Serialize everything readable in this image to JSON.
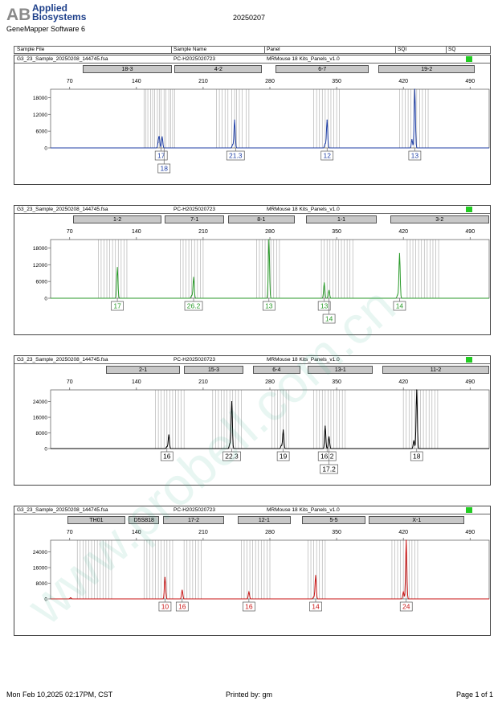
{
  "header": {
    "brand_line1": "Applied",
    "brand_line2": "Biosystems",
    "logo_letters": "AB",
    "software": "GeneMapper Software 6",
    "date": "20250207"
  },
  "columns": [
    "Sample File",
    "Sample Name",
    "Panel",
    "SQI",
    "SQ"
  ],
  "footer": {
    "printed_at": "Mon Feb 10,2025 02:17PM, CST",
    "printed_by": "Printed by: gm",
    "page": "Page 1 of 1"
  },
  "watermark": "www.probell.com.cn",
  "colors": {
    "quality_box": "#22cc22",
    "bin_lines": "#b4b4b4"
  },
  "chart_data": [
    {
      "type": "line",
      "sample_file": "G3_23_Sample_20250208_144745.fsa",
      "sample_name": "PC-H2025020723",
      "panel": "MRMouse 18 Kits_Panels_v1.0",
      "color": "#1f3fa6",
      "xlim": [
        50,
        510
      ],
      "x_ticks": [
        70,
        140,
        210,
        280,
        350,
        420,
        490
      ],
      "ylim": [
        0,
        21000
      ],
      "y_ticks": [
        0,
        6000,
        12000,
        18000
      ],
      "markers": [
        {
          "name": "18-3",
          "start": 84,
          "end": 177
        },
        {
          "name": "4-2",
          "start": 180,
          "end": 272
        },
        {
          "name": "6-7",
          "start": 286,
          "end": 384
        },
        {
          "name": "19-2",
          "start": 394,
          "end": 495
        }
      ],
      "bins": [
        [
          148,
          150,
          152,
          155,
          157,
          159,
          162,
          164,
          166,
          169,
          171,
          174,
          176,
          178,
          180
        ],
        [
          224,
          227,
          230,
          233,
          236,
          240,
          243,
          245,
          248,
          251,
          255,
          258
        ],
        [
          326,
          329,
          332,
          335,
          338,
          341,
          344,
          347,
          350,
          353
        ],
        [
          416,
          419,
          422,
          425,
          428,
          431,
          434,
          437,
          440,
          443,
          446
        ]
      ],
      "peaks": [
        {
          "x": 163,
          "height": 2000
        },
        {
          "x": 164,
          "height": 3500
        },
        {
          "x": 167,
          "height": 4000
        },
        {
          "x": 241,
          "height": 1200
        },
        {
          "x": 243,
          "height": 10000
        },
        {
          "x": 338,
          "height": 1500
        },
        {
          "x": 340,
          "height": 10000
        },
        {
          "x": 429,
          "height": 3000
        },
        {
          "x": 432,
          "height": 21000
        }
      ],
      "alleles": [
        {
          "label": "17",
          "x": 166,
          "row": 0
        },
        {
          "label": "18",
          "x": 169,
          "row": 1
        },
        {
          "label": "21.3",
          "x": 244,
          "row": 0
        },
        {
          "label": "12",
          "x": 340,
          "row": 0
        },
        {
          "label": "13",
          "x": 432,
          "row": 0
        }
      ]
    },
    {
      "type": "line",
      "sample_file": "G3_23_Sample_20250208_144745.fsa",
      "sample_name": "PC-H2025020723",
      "panel": "MRMouse 18 Kits_Panels_v1.0",
      "color": "#2a9a2a",
      "xlim": [
        50,
        510
      ],
      "x_ticks": [
        70,
        140,
        210,
        280,
        350,
        420,
        490
      ],
      "ylim": [
        0,
        21000
      ],
      "y_ticks": [
        0,
        6000,
        12000,
        18000
      ],
      "markers": [
        {
          "name": "1-2",
          "start": 74,
          "end": 166
        },
        {
          "name": "7-1",
          "start": 170,
          "end": 232
        },
        {
          "name": "8-1",
          "start": 236,
          "end": 306
        },
        {
          "name": "1-1",
          "start": 318,
          "end": 392
        },
        {
          "name": "3-2",
          "start": 406,
          "end": 510
        }
      ],
      "bins": [
        [
          100,
          103,
          106,
          109,
          112,
          115,
          118,
          121,
          124,
          127,
          130
        ],
        [
          186,
          189,
          192,
          195,
          198,
          201,
          204,
          207,
          210
        ],
        [
          266,
          269,
          272,
          275,
          278,
          281,
          284,
          287,
          290
        ],
        [
          334,
          337,
          340,
          343,
          346,
          349,
          352,
          355,
          358,
          361,
          364,
          367
        ],
        [
          424,
          427,
          430,
          433,
          436,
          439,
          442,
          445,
          448,
          451,
          454,
          457
        ]
      ],
      "peaks": [
        {
          "x": 120,
          "height": 11000
        },
        {
          "x": 198,
          "height": 1000
        },
        {
          "x": 200,
          "height": 7500
        },
        {
          "x": 279,
          "height": 21000
        },
        {
          "x": 337,
          "height": 5500
        },
        {
          "x": 342,
          "height": 2800
        },
        {
          "x": 414,
          "height": 1200
        },
        {
          "x": 416,
          "height": 16000
        }
      ],
      "alleles": [
        {
          "label": "17",
          "x": 120,
          "row": 0
        },
        {
          "label": "26.2",
          "x": 200,
          "row": 0
        },
        {
          "label": "13",
          "x": 279,
          "row": 0
        },
        {
          "label": "13",
          "x": 337,
          "row": 0
        },
        {
          "label": "14",
          "x": 342,
          "row": 1
        },
        {
          "label": "14",
          "x": 416,
          "row": 0
        }
      ]
    },
    {
      "type": "line",
      "sample_file": "G3_23_Sample_20250208_144745.fsa",
      "sample_name": "PC-H2025020723",
      "panel": "MRMouse 18 Kits_Panels_v1.0",
      "color": "#000000",
      "xlim": [
        50,
        510
      ],
      "x_ticks": [
        70,
        140,
        210,
        280,
        350,
        420,
        490
      ],
      "ylim": [
        0,
        30000
      ],
      "y_ticks": [
        0,
        8000,
        16000,
        24000
      ],
      "markers": [
        {
          "name": "2-1",
          "start": 108,
          "end": 186
        },
        {
          "name": "15-3",
          "start": 190,
          "end": 252
        },
        {
          "name": "6-4",
          "start": 262,
          "end": 312
        },
        {
          "name": "13-1",
          "start": 320,
          "end": 388
        },
        {
          "name": "11-2",
          "start": 398,
          "end": 510
        }
      ],
      "bins": [
        [
          160,
          163,
          166,
          169,
          172,
          175,
          178,
          181,
          184,
          187,
          190
        ],
        [
          220,
          223,
          226,
          229,
          232,
          235,
          238,
          241,
          244,
          247,
          250
        ],
        [
          282,
          285,
          288,
          291,
          294,
          297,
          300
        ],
        [
          326,
          329,
          332,
          335,
          338,
          341,
          344,
          347,
          350,
          353,
          356,
          359
        ],
        [
          420,
          423,
          426,
          429,
          432,
          435,
          438,
          441,
          444,
          447,
          450,
          453,
          456
        ]
      ],
      "peaks": [
        {
          "x": 172,
          "height": 1000
        },
        {
          "x": 174,
          "height": 7000
        },
        {
          "x": 238,
          "height": 2500
        },
        {
          "x": 240,
          "height": 24000
        },
        {
          "x": 292,
          "height": 1500
        },
        {
          "x": 294,
          "height": 9500
        },
        {
          "x": 338,
          "height": 11500
        },
        {
          "x": 342,
          "height": 6000
        },
        {
          "x": 431,
          "height": 4000
        },
        {
          "x": 434,
          "height": 30000
        }
      ],
      "alleles": [
        {
          "label": "16",
          "x": 172,
          "row": 0
        },
        {
          "label": "22.3",
          "x": 240,
          "row": 0
        },
        {
          "label": "19",
          "x": 294,
          "row": 0
        },
        {
          "label": "16.2",
          "x": 340,
          "row": 0
        },
        {
          "label": "17.2",
          "x": 342,
          "row": 1
        },
        {
          "label": "18",
          "x": 434,
          "row": 0
        }
      ]
    },
    {
      "type": "line",
      "sample_file": "G3_23_Sample_20250208_144745.fsa",
      "sample_name": "PC-H2025020723",
      "panel": "MRMouse 18 Kits_Panels_v1.0",
      "color": "#c81414",
      "xlim": [
        50,
        510
      ],
      "x_ticks": [
        70,
        140,
        210,
        280,
        350,
        420,
        490
      ],
      "ylim": [
        0,
        30000
      ],
      "y_ticks": [
        0,
        8000,
        16000,
        24000
      ],
      "markers": [
        {
          "name": "TH01",
          "start": 68,
          "end": 128
        },
        {
          "name": "D5S818",
          "start": 132,
          "end": 164
        },
        {
          "name": "17-2",
          "start": 168,
          "end": 232
        },
        {
          "name": "12-1",
          "start": 246,
          "end": 302
        },
        {
          "name": "5-5",
          "start": 314,
          "end": 380
        },
        {
          "name": "X-1",
          "start": 384,
          "end": 484
        }
      ],
      "bins": [
        [
          78,
          81,
          84,
          87,
          90,
          93,
          96,
          99,
          102,
          105,
          108,
          111,
          114
        ],
        [
          148,
          151,
          154,
          157,
          160,
          163,
          166,
          169,
          172,
          175,
          178
        ],
        [
          190,
          193,
          196,
          199,
          202,
          205,
          208
        ],
        [
          250,
          253,
          256,
          259,
          262,
          265,
          268,
          271,
          274,
          277,
          280
        ],
        [
          320,
          323,
          326,
          329,
          332,
          335,
          338
        ],
        [
          408,
          411,
          414,
          417,
          420,
          423,
          426,
          429,
          432,
          435
        ]
      ],
      "peaks": [
        {
          "x": 71,
          "height": 600
        },
        {
          "x": 170,
          "height": 11000
        },
        {
          "x": 188,
          "height": 4500
        },
        {
          "x": 258,
          "height": 3500
        },
        {
          "x": 326,
          "height": 1000
        },
        {
          "x": 328,
          "height": 12000
        },
        {
          "x": 420,
          "height": 3500
        },
        {
          "x": 423,
          "height": 30000
        }
      ],
      "alleles": [
        {
          "label": "10",
          "x": 170,
          "row": 0
        },
        {
          "label": "16",
          "x": 188,
          "row": 0
        },
        {
          "label": "16",
          "x": 258,
          "row": 0
        },
        {
          "label": "14",
          "x": 328,
          "row": 0
        },
        {
          "label": "24",
          "x": 423,
          "row": 0
        }
      ]
    }
  ]
}
